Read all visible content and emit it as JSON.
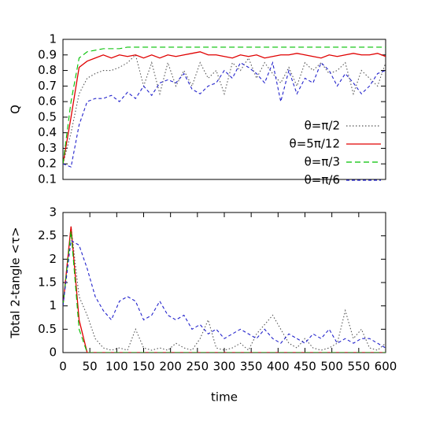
{
  "chart_data": [
    {
      "type": "line",
      "ylabel": "Q",
      "legend": "lower right",
      "x": [
        0,
        15,
        30,
        45,
        60,
        75,
        90,
        105,
        120,
        135,
        150,
        165,
        180,
        195,
        210,
        225,
        240,
        255,
        270,
        285,
        300,
        315,
        330,
        345,
        360,
        375,
        390,
        405,
        420,
        435,
        450,
        465,
        480,
        495,
        510,
        525,
        540,
        555,
        570,
        585,
        600
      ],
      "xlim": [
        0,
        600
      ],
      "ylim": [
        0.1,
        1
      ],
      "yticks": [
        0.1,
        0.2,
        0.3,
        0.4,
        0.5,
        0.6,
        0.7,
        0.8,
        0.9,
        1
      ],
      "series": [
        {
          "name": "θ=π/2",
          "color": "#555555",
          "style": "dotted",
          "values": [
            0.2,
            0.4,
            0.65,
            0.75,
            0.78,
            0.8,
            0.8,
            0.82,
            0.85,
            0.9,
            0.7,
            0.85,
            0.65,
            0.85,
            0.7,
            0.8,
            0.7,
            0.85,
            0.75,
            0.8,
            0.65,
            0.85,
            0.8,
            0.88,
            0.75,
            0.85,
            0.78,
            0.72,
            0.82,
            0.7,
            0.85,
            0.8,
            0.85,
            0.78,
            0.8,
            0.85,
            0.65,
            0.8,
            0.75,
            0.7,
            0.85
          ]
        },
        {
          "name": "θ=5π/12",
          "color": "#e00000",
          "style": "solid",
          "values": [
            0.2,
            0.5,
            0.82,
            0.86,
            0.88,
            0.9,
            0.88,
            0.9,
            0.89,
            0.9,
            0.88,
            0.9,
            0.88,
            0.9,
            0.89,
            0.9,
            0.91,
            0.92,
            0.9,
            0.9,
            0.89,
            0.88,
            0.9,
            0.89,
            0.9,
            0.88,
            0.89,
            0.9,
            0.9,
            0.91,
            0.9,
            0.89,
            0.88,
            0.9,
            0.89,
            0.9,
            0.91,
            0.9,
            0.9,
            0.91,
            0.89
          ]
        },
        {
          "name": "θ=π/3",
          "color": "#00c000",
          "style": "dashed",
          "values": [
            0.2,
            0.6,
            0.88,
            0.92,
            0.93,
            0.94,
            0.94,
            0.94,
            0.95,
            0.95,
            0.95,
            0.95,
            0.95,
            0.95,
            0.95,
            0.95,
            0.95,
            0.95,
            0.95,
            0.95,
            0.95,
            0.95,
            0.95,
            0.95,
            0.95,
            0.95,
            0.95,
            0.95,
            0.95,
            0.95,
            0.95,
            0.95,
            0.95,
            0.95,
            0.95,
            0.95,
            0.95,
            0.95,
            0.95,
            0.95,
            0.95
          ]
        },
        {
          "name": "θ=π/6",
          "color": "#2222cc",
          "style": "short-dashed",
          "values": [
            0.2,
            0.18,
            0.45,
            0.6,
            0.62,
            0.62,
            0.64,
            0.6,
            0.66,
            0.62,
            0.7,
            0.64,
            0.72,
            0.74,
            0.72,
            0.78,
            0.68,
            0.65,
            0.7,
            0.72,
            0.8,
            0.75,
            0.85,
            0.82,
            0.78,
            0.72,
            0.85,
            0.6,
            0.8,
            0.65,
            0.75,
            0.72,
            0.85,
            0.8,
            0.7,
            0.78,
            0.72,
            0.65,
            0.7,
            0.78,
            0.8
          ]
        }
      ]
    },
    {
      "type": "line",
      "ylabel": "Total 2-tangle <τ>",
      "xlabel": "time",
      "x": [
        0,
        15,
        30,
        45,
        60,
        75,
        90,
        105,
        120,
        135,
        150,
        165,
        180,
        195,
        210,
        225,
        240,
        255,
        270,
        285,
        300,
        315,
        330,
        345,
        360,
        375,
        390,
        405,
        420,
        435,
        450,
        465,
        480,
        495,
        510,
        525,
        540,
        555,
        570,
        585,
        600
      ],
      "xlim": [
        0,
        600
      ],
      "xticks": [
        0,
        50,
        100,
        150,
        200,
        250,
        300,
        350,
        400,
        450,
        500,
        550,
        600
      ],
      "ylim": [
        0,
        3
      ],
      "yticks": [
        0,
        0.5,
        1,
        1.5,
        2,
        2.5,
        3
      ],
      "series": [
        {
          "color": "#555555",
          "style": "dotted",
          "values": [
            1,
            2.7,
            1.2,
            0.8,
            0.3,
            0.1,
            0.05,
            0.1,
            0.05,
            0.5,
            0.1,
            0.05,
            0.1,
            0.05,
            0.2,
            0.1,
            0.05,
            0.3,
            0.7,
            0.1,
            0.05,
            0.1,
            0.2,
            0.05,
            0.4,
            0.6,
            0.8,
            0.5,
            0.2,
            0.1,
            0.3,
            0.1,
            0.05,
            0.1,
            0.2,
            0.9,
            0.3,
            0.5,
            0.1,
            0.05,
            0.2
          ]
        },
        {
          "color": "#e00000",
          "style": "solid",
          "values": [
            1,
            2.7,
            0.7,
            0,
            0,
            0,
            0,
            0,
            0,
            0,
            0,
            0,
            0,
            0,
            0,
            0,
            0,
            0,
            0,
            0,
            0,
            0,
            0,
            0,
            0,
            0,
            0,
            0,
            0,
            0,
            0,
            0,
            0,
            0,
            0,
            0,
            0,
            0,
            0,
            0,
            0
          ]
        },
        {
          "color": "#00c000",
          "style": "dashed",
          "values": [
            1,
            2.6,
            0.5,
            0,
            0,
            0,
            0,
            0,
            0,
            0,
            0,
            0,
            0,
            0,
            0,
            0,
            0,
            0,
            0,
            0,
            0,
            0,
            0,
            0,
            0,
            0,
            0,
            0,
            0,
            0,
            0,
            0,
            0,
            0,
            0,
            0,
            0,
            0,
            0,
            0,
            0
          ]
        },
        {
          "color": "#2222cc",
          "style": "short-dashed",
          "values": [
            1,
            2.4,
            2.3,
            1.8,
            1.2,
            0.9,
            0.7,
            1.1,
            1.2,
            1.1,
            0.7,
            0.8,
            1.1,
            0.8,
            0.7,
            0.8,
            0.5,
            0.6,
            0.4,
            0.5,
            0.3,
            0.4,
            0.5,
            0.4,
            0.3,
            0.5,
            0.3,
            0.2,
            0.4,
            0.3,
            0.2,
            0.4,
            0.3,
            0.5,
            0.2,
            0.3,
            0.2,
            0.3,
            0.3,
            0.2,
            0.1
          ]
        }
      ]
    }
  ]
}
